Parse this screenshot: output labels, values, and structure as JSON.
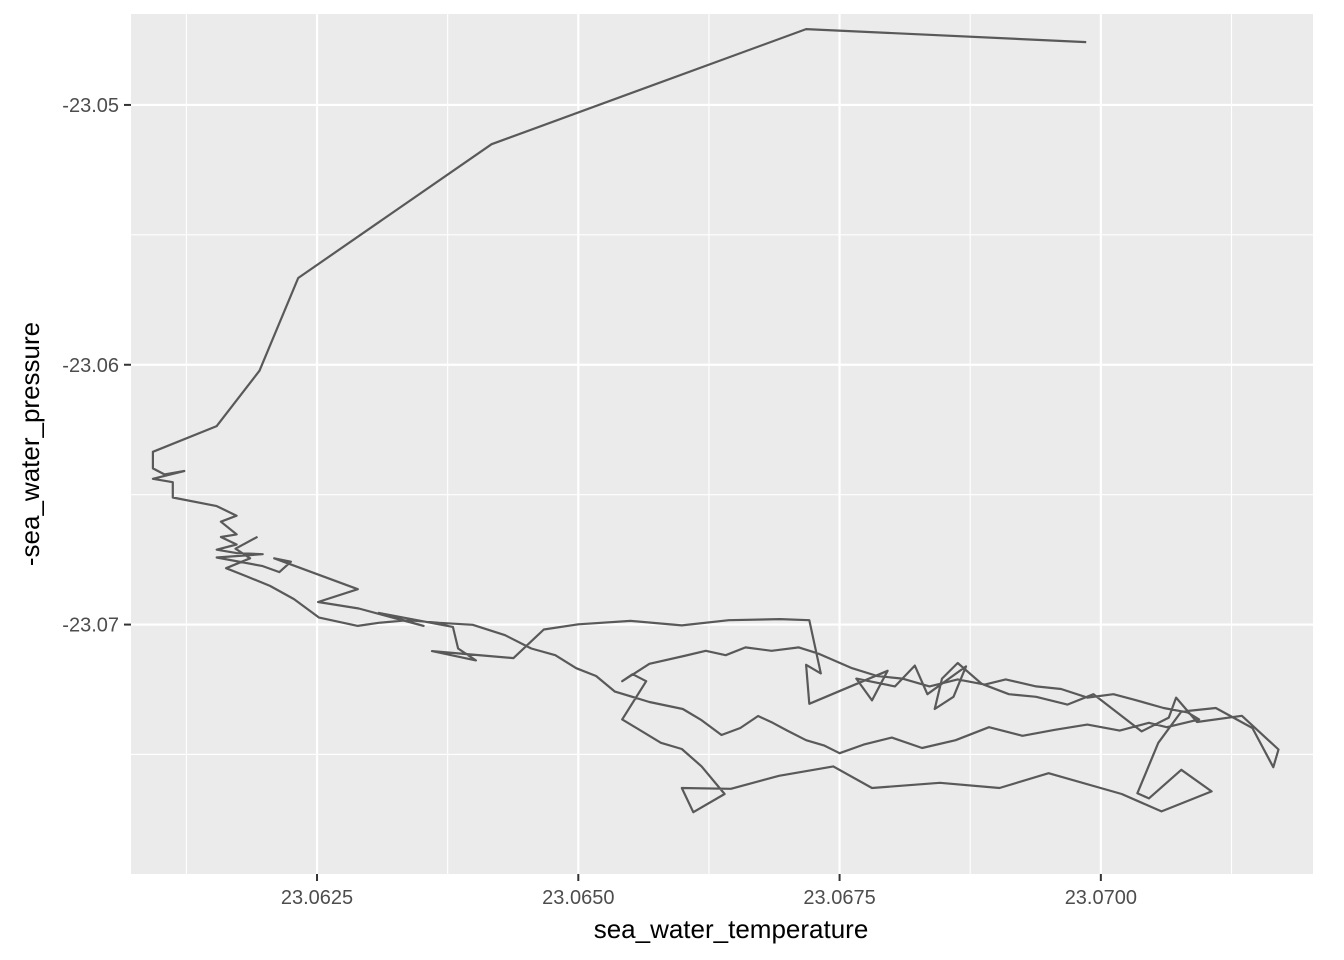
{
  "chart_data": {
    "type": "line",
    "title": "",
    "xlabel": "sea_water_temperature",
    "ylabel": "-sea_water_pressure",
    "xlim": [
      23.06072,
      23.07203
    ],
    "ylim": [
      -23.0796,
      -23.0465
    ],
    "x_ticks": [
      23.0625,
      23.065,
      23.0675,
      23.07
    ],
    "x_tick_labels": [
      "23.0625",
      "23.0650",
      "23.0675",
      "23.0700"
    ],
    "y_ticks": [
      -23.05,
      -23.06,
      -23.07
    ],
    "y_tick_labels": [
      "-23.05",
      "-23.06",
      "-23.07"
    ],
    "grid": true,
    "legend": "none",
    "colors": {
      "panel": "#ebebeb",
      "grid": "#ffffff",
      "line": "#595959"
    },
    "series": [
      {
        "x": [
          23.06986,
          23.06718,
          23.06417,
          23.06232,
          23.06195,
          23.06154,
          23.06093,
          23.06093,
          23.06104,
          23.06123,
          23.06093,
          23.06112,
          23.06112,
          23.06154,
          23.06154,
          23.06173,
          23.06158,
          23.06173,
          23.06158,
          23.06173,
          23.06154,
          23.06173,
          23.06198,
          23.06154,
          23.06198,
          23.06214,
          23.06225,
          23.06209,
          23.06289,
          23.06251,
          23.0629,
          23.06352,
          23.06309,
          23.0638,
          23.06385,
          23.06402,
          23.0636,
          23.06438,
          23.06467,
          23.065,
          23.0655,
          23.06599,
          23.06644,
          23.06693,
          23.06721,
          23.06732,
          23.06718,
          23.06721,
          23.06796,
          23.06781,
          23.06766,
          23.06803,
          23.06822,
          23.06834,
          23.06871,
          23.06859,
          23.06841,
          23.06848,
          23.06863,
          23.06886,
          23.06912,
          23.06938,
          23.06968,
          23.06993,
          23.07039,
          23.07065,
          23.07072,
          23.07092,
          23.07135,
          23.0717,
          23.07165,
          23.07145,
          23.0711,
          23.07077,
          23.07055,
          23.07035,
          23.07046,
          23.07077,
          23.07106,
          23.07058,
          23.0702,
          23.0695,
          23.06903,
          23.06846,
          23.06781,
          23.06744,
          23.06692,
          23.06646,
          23.06599,
          23.0661,
          23.0664,
          23.06618,
          23.06599,
          23.06579,
          23.06542,
          23.06565,
          23.06552,
          23.06542,
          23.06568,
          23.06601,
          23.06622,
          23.06641,
          23.0666,
          23.06685,
          23.06711,
          23.0673,
          23.06762,
          23.06786,
          23.0681,
          23.06836,
          23.06863,
          23.06889,
          23.06909,
          23.06938,
          23.06962,
          23.06987,
          23.07012,
          23.07031,
          23.0706,
          23.07083,
          23.07094,
          23.07063,
          23.07046,
          23.07018,
          23.06987,
          23.06956,
          23.06925,
          23.06893,
          23.06861,
          23.06829,
          23.068,
          23.06773,
          23.0675,
          23.06735,
          23.06718,
          23.067,
          23.06686,
          23.06672,
          23.06655,
          23.06637,
          23.06618,
          23.066,
          23.06568,
          23.06535,
          23.06517,
          23.06498,
          23.06478,
          23.06455,
          23.0643,
          23.06399,
          23.06367,
          23.06337,
          23.06309,
          23.06289,
          23.06252,
          23.06228,
          23.06205,
          23.06183,
          23.06163,
          23.06186,
          23.06172,
          23.06193
        ],
        "y": [
          -23.04758,
          -23.04708,
          -23.05151,
          -23.05666,
          -23.06023,
          -23.06236,
          -23.06335,
          -23.06399,
          -23.06422,
          -23.06409,
          -23.06439,
          -23.06452,
          -23.06511,
          -23.06544,
          -23.06544,
          -23.06581,
          -23.06604,
          -23.06653,
          -23.06663,
          -23.06692,
          -23.06712,
          -23.06725,
          -23.06729,
          -23.06742,
          -23.06775,
          -23.06798,
          -23.06758,
          -23.06745,
          -23.06864,
          -23.06913,
          -23.06938,
          -23.07005,
          -23.06955,
          -23.07009,
          -23.07092,
          -23.07138,
          -23.07102,
          -23.07129,
          -23.07019,
          -23.06999,
          -23.06986,
          -23.07003,
          -23.06983,
          -23.06979,
          -23.06983,
          -23.07188,
          -23.07155,
          -23.07305,
          -23.07178,
          -23.07292,
          -23.07208,
          -23.07238,
          -23.07158,
          -23.07268,
          -23.07161,
          -23.07278,
          -23.07325,
          -23.07208,
          -23.07148,
          -23.07228,
          -23.07268,
          -23.07278,
          -23.07308,
          -23.07268,
          -23.07411,
          -23.07358,
          -23.07281,
          -23.07375,
          -23.07351,
          -23.07481,
          -23.07549,
          -23.07398,
          -23.07321,
          -23.07335,
          -23.07455,
          -23.07649,
          -23.07669,
          -23.07559,
          -23.07642,
          -23.07719,
          -23.07652,
          -23.07572,
          -23.07629,
          -23.07609,
          -23.07629,
          -23.07546,
          -23.07582,
          -23.07632,
          -23.07629,
          -23.07722,
          -23.07652,
          -23.07546,
          -23.07479,
          -23.07455,
          -23.07365,
          -23.07218,
          -23.07191,
          -23.07218,
          -23.07151,
          -23.07121,
          -23.07101,
          -23.07118,
          -23.07088,
          -23.07101,
          -23.07088,
          -23.07112,
          -23.07168,
          -23.07198,
          -23.07208,
          -23.07238,
          -23.07211,
          -23.07231,
          -23.07211,
          -23.07238,
          -23.07248,
          -23.07281,
          -23.07268,
          -23.07288,
          -23.07321,
          -23.07338,
          -23.07365,
          -23.07395,
          -23.07378,
          -23.07408,
          -23.07385,
          -23.07405,
          -23.07428,
          -23.07395,
          -23.07445,
          -23.07475,
          -23.07435,
          -23.07462,
          -23.07495,
          -23.07465,
          -23.07445,
          -23.07408,
          -23.07378,
          -23.07352,
          -23.07398,
          -23.07425,
          -23.07368,
          -23.07325,
          -23.07298,
          -23.07258,
          -23.07198,
          -23.07168,
          -23.07118,
          -23.07092,
          -23.07041,
          -23.07001,
          -23.06993,
          -23.06983,
          -23.06993,
          -23.07005,
          -23.06973,
          -23.06902,
          -23.06851,
          -23.06815,
          -23.06783,
          -23.06745,
          -23.06708,
          -23.06662
        ]
      }
    ]
  }
}
